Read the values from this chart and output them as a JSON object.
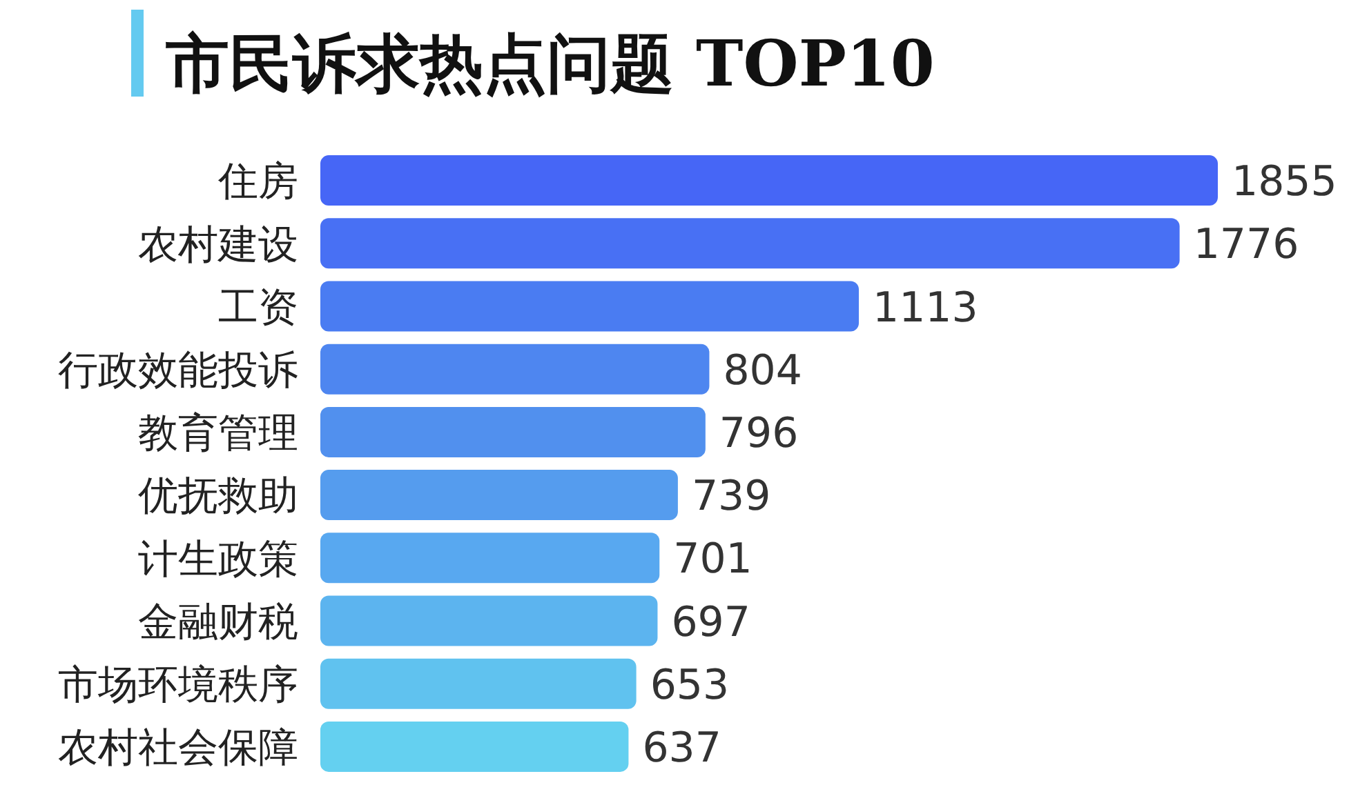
{
  "chart_data": {
    "type": "bar",
    "orientation": "horizontal",
    "title": "市民诉求热点问题 TOP10",
    "categories": [
      "住房",
      "农村建设",
      "工资",
      "行政效能投诉",
      "教育管理",
      "优抚救助",
      "计生政策",
      "金融财税",
      "市场环境秩序",
      "农村社会保障"
    ],
    "values": [
      1855,
      1776,
      1113,
      804,
      796,
      739,
      701,
      697,
      653,
      637
    ],
    "colors": [
      "#4666f6",
      "#4870f4",
      "#4a7cf2",
      "#4e86f0",
      "#5190ee",
      "#559cee",
      "#58a8f0",
      "#5cb4ef",
      "#60c2ef",
      "#64d0f0"
    ],
    "data_labels": true
  }
}
